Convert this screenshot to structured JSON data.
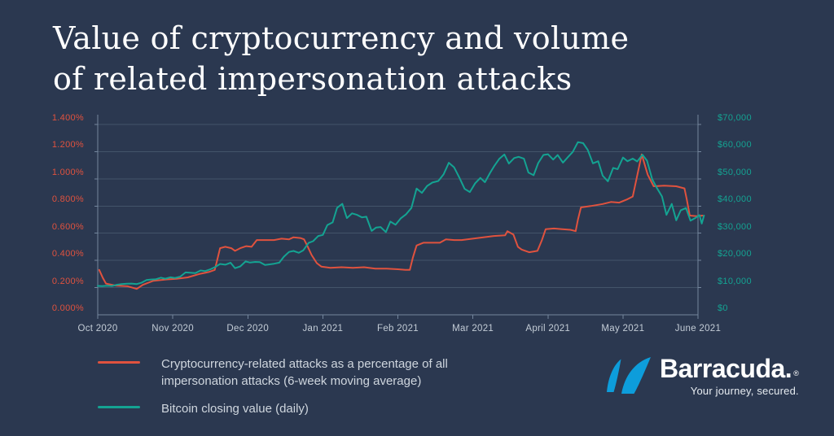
{
  "title": {
    "line1": "Value of cryptocurrency and volume",
    "line2": "of related impersonation attacks"
  },
  "colors": {
    "background": "#2b3850",
    "attacks_red": "#e0523e",
    "bitcoin_teal": "#14a392",
    "gridline": "#43546a",
    "axis_line": "#74869d",
    "x_label": "#c3ccd6",
    "legend_text": "#cfd6de",
    "logo_blue": "#0d9ddb"
  },
  "legend": {
    "items": [
      {
        "label": "Cryptocurrency-related attacks as a percentage of all\nimpersonation attacks (6-week moving average)",
        "color": "#e0523e"
      },
      {
        "label": "Bitcoin closing value (daily)",
        "color": "#14a392"
      }
    ]
  },
  "branding": {
    "wordmark": "Barracuda.",
    "registered": "®",
    "tagline": "Your journey, secured.",
    "logo_icon": "barracuda-sails-icon"
  },
  "chart_data": {
    "type": "line",
    "title": "Value of cryptocurrency and volume of related impersonation attacks",
    "grid": true,
    "legend_position": "bottom-left",
    "x_axis": {
      "tick_labels": [
        "Oct 2020",
        "Nov 2020",
        "Dec 2020",
        "Jan 2021",
        "Feb 2021",
        "Mar 2021",
        "April 2021",
        "May 2021",
        "June 2021"
      ],
      "range_months": [
        0,
        8.06
      ]
    },
    "left_axis": {
      "title": "Cryptocurrency-related attacks as a percentage of all impersonation attacks",
      "unit": "%",
      "color": "#e0523e",
      "min": 0,
      "max": 1.4,
      "tick_labels": [
        "1.400%",
        "1.200%",
        "1.000%",
        "0.800%",
        "0.600%",
        "0.400%",
        "0.200%",
        "0.000%"
      ],
      "tick_values": [
        1.4,
        1.2,
        1.0,
        0.8,
        0.6,
        0.4,
        0.2,
        0.0
      ]
    },
    "right_axis": {
      "title": "Bitcoin closing value (USD)",
      "unit": "$",
      "color": "#14a392",
      "min": 0,
      "max": 70000,
      "tick_labels": [
        "$70,000",
        "$60,000",
        "$50,000",
        "$40,000",
        "$30,000",
        "$20,000",
        "$10,000",
        "$0"
      ],
      "tick_values": [
        70000,
        60000,
        50000,
        40000,
        30000,
        20000,
        10000,
        0
      ]
    },
    "series": [
      {
        "id": "attacks_pct",
        "name": "Cryptocurrency-related attacks as a percentage of all impersonation attacks (6-week moving average)",
        "axis": "left",
        "color": "#e0523e",
        "points": [
          [
            0.02,
            0.33
          ],
          [
            0.07,
            0.27
          ],
          [
            0.11,
            0.23
          ],
          [
            0.24,
            0.215
          ],
          [
            0.4,
            0.21
          ],
          [
            0.52,
            0.19
          ],
          [
            0.6,
            0.22
          ],
          [
            0.74,
            0.25
          ],
          [
            0.92,
            0.26
          ],
          [
            1.05,
            0.265
          ],
          [
            1.2,
            0.275
          ],
          [
            1.35,
            0.3
          ],
          [
            1.48,
            0.315
          ],
          [
            1.56,
            0.33
          ],
          [
            1.6,
            0.42
          ],
          [
            1.63,
            0.49
          ],
          [
            1.7,
            0.5
          ],
          [
            1.78,
            0.49
          ],
          [
            1.83,
            0.47
          ],
          [
            1.9,
            0.49
          ],
          [
            1.98,
            0.505
          ],
          [
            2.05,
            0.5
          ],
          [
            2.12,
            0.55
          ],
          [
            2.25,
            0.55
          ],
          [
            2.35,
            0.55
          ],
          [
            2.45,
            0.56
          ],
          [
            2.55,
            0.555
          ],
          [
            2.61,
            0.57
          ],
          [
            2.7,
            0.565
          ],
          [
            2.75,
            0.555
          ],
          [
            2.8,
            0.5
          ],
          [
            2.85,
            0.44
          ],
          [
            2.92,
            0.38
          ],
          [
            2.98,
            0.355
          ],
          [
            3.1,
            0.345
          ],
          [
            3.25,
            0.35
          ],
          [
            3.4,
            0.345
          ],
          [
            3.55,
            0.35
          ],
          [
            3.7,
            0.34
          ],
          [
            3.85,
            0.34
          ],
          [
            4.0,
            0.335
          ],
          [
            4.1,
            0.33
          ],
          [
            4.16,
            0.33
          ],
          [
            4.2,
            0.42
          ],
          [
            4.25,
            0.51
          ],
          [
            4.34,
            0.53
          ],
          [
            4.45,
            0.53
          ],
          [
            4.56,
            0.53
          ],
          [
            4.64,
            0.555
          ],
          [
            4.75,
            0.55
          ],
          [
            4.85,
            0.55
          ],
          [
            5.0,
            0.56
          ],
          [
            5.14,
            0.57
          ],
          [
            5.28,
            0.58
          ],
          [
            5.43,
            0.585
          ],
          [
            5.46,
            0.615
          ],
          [
            5.54,
            0.59
          ],
          [
            5.6,
            0.5
          ],
          [
            5.65,
            0.48
          ],
          [
            5.75,
            0.46
          ],
          [
            5.86,
            0.47
          ],
          [
            5.92,
            0.55
          ],
          [
            5.97,
            0.63
          ],
          [
            6.08,
            0.635
          ],
          [
            6.19,
            0.63
          ],
          [
            6.3,
            0.625
          ],
          [
            6.37,
            0.615
          ],
          [
            6.4,
            0.7
          ],
          [
            6.44,
            0.79
          ],
          [
            6.57,
            0.8
          ],
          [
            6.73,
            0.815
          ],
          [
            6.84,
            0.83
          ],
          [
            6.95,
            0.825
          ],
          [
            7.06,
            0.85
          ],
          [
            7.13,
            0.87
          ],
          [
            7.2,
            1.05
          ],
          [
            7.25,
            1.18
          ],
          [
            7.33,
            1.03
          ],
          [
            7.41,
            0.945
          ],
          [
            7.55,
            0.95
          ],
          [
            7.71,
            0.945
          ],
          [
            7.82,
            0.93
          ],
          [
            7.85,
            0.85
          ],
          [
            7.89,
            0.73
          ],
          [
            7.98,
            0.725
          ],
          [
            8.06,
            0.73
          ]
        ]
      },
      {
        "id": "bitcoin_usd",
        "name": "Bitcoin closing value (daily)",
        "axis": "right",
        "color": "#14a392",
        "points": [
          [
            0.0,
            10620
          ],
          [
            0.06,
            10570
          ],
          [
            0.13,
            10670
          ],
          [
            0.19,
            10600
          ],
          [
            0.26,
            11060
          ],
          [
            0.32,
            11300
          ],
          [
            0.39,
            11430
          ],
          [
            0.45,
            11500
          ],
          [
            0.52,
            11320
          ],
          [
            0.58,
            11760
          ],
          [
            0.65,
            12800
          ],
          [
            0.71,
            12990
          ],
          [
            0.77,
            13050
          ],
          [
            0.84,
            13650
          ],
          [
            0.9,
            13270
          ],
          [
            0.97,
            13800
          ],
          [
            1.03,
            13550
          ],
          [
            1.1,
            14020
          ],
          [
            1.17,
            15590
          ],
          [
            1.23,
            15480
          ],
          [
            1.3,
            15330
          ],
          [
            1.37,
            16290
          ],
          [
            1.43,
            16070
          ],
          [
            1.5,
            16720
          ],
          [
            1.57,
            17660
          ],
          [
            1.63,
            18700
          ],
          [
            1.7,
            18420
          ],
          [
            1.77,
            19160
          ],
          [
            1.83,
            17150
          ],
          [
            1.9,
            17800
          ],
          [
            1.97,
            19630
          ],
          [
            2.03,
            19200
          ],
          [
            2.1,
            19450
          ],
          [
            2.16,
            19360
          ],
          [
            2.23,
            18320
          ],
          [
            2.29,
            18550
          ],
          [
            2.35,
            18800
          ],
          [
            2.42,
            19170
          ],
          [
            2.48,
            21350
          ],
          [
            2.55,
            23130
          ],
          [
            2.61,
            23480
          ],
          [
            2.68,
            22800
          ],
          [
            2.74,
            23730
          ],
          [
            2.81,
            26440
          ],
          [
            2.87,
            27080
          ],
          [
            2.94,
            28980
          ],
          [
            3.0,
            29370
          ],
          [
            3.06,
            33000
          ],
          [
            3.13,
            33990
          ],
          [
            3.19,
            39370
          ],
          [
            3.26,
            40790
          ],
          [
            3.32,
            35570
          ],
          [
            3.39,
            37310
          ],
          [
            3.45,
            36820
          ],
          [
            3.52,
            35830
          ],
          [
            3.58,
            36070
          ],
          [
            3.65,
            30830
          ],
          [
            3.71,
            32090
          ],
          [
            3.77,
            32280
          ],
          [
            3.84,
            30430
          ],
          [
            3.9,
            34270
          ],
          [
            3.97,
            33110
          ],
          [
            4.04,
            35510
          ],
          [
            4.11,
            36980
          ],
          [
            4.18,
            39270
          ],
          [
            4.25,
            46420
          ],
          [
            4.32,
            44850
          ],
          [
            4.39,
            47380
          ],
          [
            4.46,
            48640
          ],
          [
            4.54,
            49200
          ],
          [
            4.61,
            51680
          ],
          [
            4.68,
            55920
          ],
          [
            4.75,
            54210
          ],
          [
            4.82,
            50460
          ],
          [
            4.89,
            46310
          ],
          [
            4.96,
            45140
          ],
          [
            5.03,
            48380
          ],
          [
            5.1,
            50360
          ],
          [
            5.16,
            48750
          ],
          [
            5.23,
            52240
          ],
          [
            5.29,
            54920
          ],
          [
            5.35,
            57330
          ],
          [
            5.42,
            58970
          ],
          [
            5.48,
            55610
          ],
          [
            5.55,
            57640
          ],
          [
            5.61,
            58100
          ],
          [
            5.68,
            57410
          ],
          [
            5.74,
            52310
          ],
          [
            5.81,
            51330
          ],
          [
            5.87,
            55780
          ],
          [
            5.94,
            58780
          ],
          [
            6.0,
            59060
          ],
          [
            6.07,
            57080
          ],
          [
            6.13,
            58760
          ],
          [
            6.2,
            55960
          ],
          [
            6.27,
            58080
          ],
          [
            6.33,
            59890
          ],
          [
            6.4,
            63500
          ],
          [
            6.47,
            63110
          ],
          [
            6.53,
            60680
          ],
          [
            6.6,
            55700
          ],
          [
            6.67,
            56470
          ],
          [
            6.73,
            51140
          ],
          [
            6.8,
            49080
          ],
          [
            6.87,
            54020
          ],
          [
            6.93,
            53560
          ],
          [
            7.0,
            57830
          ],
          [
            7.06,
            56470
          ],
          [
            7.13,
            57440
          ],
          [
            7.19,
            56400
          ],
          [
            7.26,
            58880
          ],
          [
            7.32,
            56700
          ],
          [
            7.39,
            49850
          ],
          [
            7.45,
            46760
          ],
          [
            7.52,
            43540
          ],
          [
            7.58,
            36750
          ],
          [
            7.65,
            40780
          ],
          [
            7.71,
            34770
          ],
          [
            7.77,
            38400
          ],
          [
            7.84,
            39290
          ],
          [
            7.9,
            34610
          ],
          [
            7.97,
            35680
          ],
          [
            8.02,
            36680
          ],
          [
            8.05,
            33570
          ],
          [
            8.08,
            36500
          ]
        ]
      }
    ]
  }
}
